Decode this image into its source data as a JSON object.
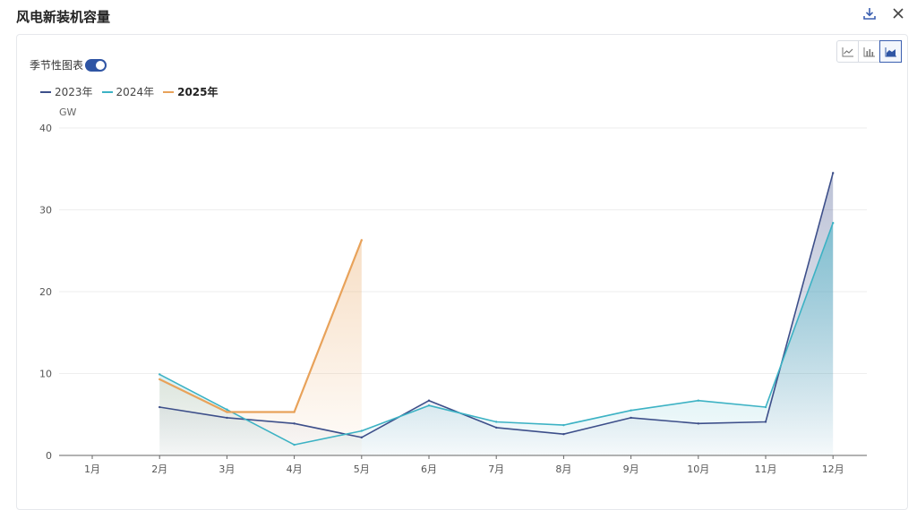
{
  "header": {
    "title": "风电新装机容量",
    "download_icon": "download-icon",
    "close_icon": "close-icon"
  },
  "toolbar": {
    "seasonal_label": "季节性图表",
    "seasonal_on": true,
    "views": [
      "line-chart-icon",
      "bar-chart-icon",
      "area-chart-icon"
    ],
    "active_view": "area-chart-icon"
  },
  "colors": {
    "s2023": "#3d4f8a",
    "s2024": "#3cb2c4",
    "s2025": "#e8a25a"
  },
  "chart_data": {
    "type": "area",
    "yunit": "GW",
    "ylim": [
      0,
      40
    ],
    "yticks": [
      0,
      10,
      20,
      30,
      40
    ],
    "categories": [
      "1月",
      "2月",
      "3月",
      "4月",
      "5月",
      "6月",
      "7月",
      "8月",
      "9月",
      "10月",
      "11月",
      "12月"
    ],
    "grid": true,
    "legend_position": "top-left",
    "series": [
      {
        "name": "2023年",
        "values": [
          null,
          5.9,
          4.6,
          3.9,
          2.2,
          6.7,
          3.4,
          2.6,
          4.6,
          3.9,
          4.1,
          34.5
        ]
      },
      {
        "name": "2024年",
        "values": [
          null,
          9.9,
          5.6,
          1.3,
          3.0,
          6.1,
          4.1,
          3.7,
          5.5,
          6.7,
          5.9,
          28.4
        ]
      },
      {
        "name": "2025年",
        "values": [
          null,
          9.3,
          5.3,
          5.3,
          26.3,
          null,
          null,
          null,
          null,
          null,
          null,
          null
        ]
      }
    ]
  }
}
